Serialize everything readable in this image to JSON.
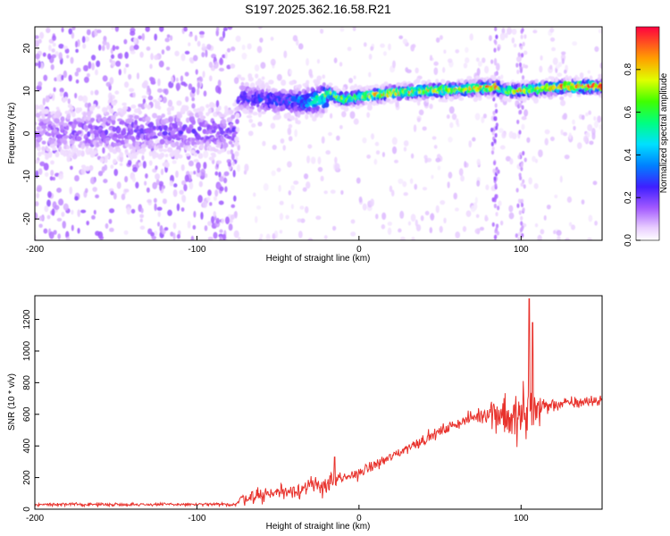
{
  "figure": {
    "title": "S197.2025.362.16.58.R21"
  },
  "chart_data": [
    {
      "type": "heatmap",
      "xlabel": "Height of straight line (km)",
      "ylabel": "Frequency (Hz)",
      "xlim": [
        -200,
        150
      ],
      "ylim": [
        -25,
        25
      ],
      "x_ticks": [
        -200,
        -100,
        0,
        100
      ],
      "y_ticks": [
        -20,
        -10,
        0,
        10,
        20
      ],
      "grid": false,
      "colorbar": {
        "label": "Normalized spectral amplitude",
        "range": [
          0,
          1
        ],
        "ticks": [
          0,
          0.2,
          0.4,
          0.6,
          0.8
        ],
        "tick_labels": [
          "0.0",
          "0.2",
          "0.4",
          "0.6",
          "0.8"
        ]
      },
      "ridge": {
        "x": [
          -200,
          -160,
          -120,
          -76,
          -74,
          -60,
          -45,
          -30,
          -22,
          -18,
          -10,
          0,
          20,
          40,
          60,
          80,
          84,
          90,
          100,
          110,
          130,
          150
        ],
        "freq_hz": [
          0.5,
          0.5,
          0.5,
          0.5,
          8.5,
          8,
          7.5,
          7.5,
          8.5,
          9.5,
          8,
          8.5,
          9.5,
          10,
          10.3,
          10.8,
          11,
          10,
          10,
          10.5,
          11,
          11
        ],
        "peak_amplitude": [
          0.15,
          0.2,
          0.2,
          0.2,
          0.25,
          0.3,
          0.3,
          0.45,
          0.6,
          0.75,
          0.75,
          0.8,
          0.85,
          0.85,
          0.85,
          0.9,
          0.95,
          0.7,
          0.8,
          0.85,
          0.95,
          0.95
        ]
      }
    },
    {
      "type": "line",
      "xlabel": "Height of straight line (km)",
      "ylabel": "SNR (10 * v/v)",
      "xlim": [
        -200,
        150
      ],
      "ylim": [
        0,
        1350
      ],
      "x_ticks": [
        -200,
        -100,
        0,
        100
      ],
      "y_ticks": [
        0,
        200,
        400,
        600,
        800,
        1000,
        1200
      ],
      "grid": false,
      "series": [
        {
          "color": "#e8322c",
          "x": [
            -200,
            -150,
            -100,
            -76,
            -72,
            -60,
            -50,
            -40,
            -30,
            -20,
            -10,
            0,
            10,
            20,
            30,
            40,
            50,
            60,
            70,
            80,
            85,
            90,
            95,
            100,
            105,
            110,
            120,
            130,
            140,
            150
          ],
          "y": [
            30,
            30,
            30,
            30,
            70,
            90,
            110,
            120,
            140,
            160,
            190,
            230,
            280,
            330,
            390,
            440,
            490,
            540,
            580,
            610,
            620,
            600,
            560,
            580,
            600,
            640,
            660,
            670,
            680,
            690
          ],
          "noise_amplitude": [
            10,
            10,
            10,
            10,
            40,
            50,
            50,
            50,
            60,
            70,
            40,
            35,
            35,
            35,
            35,
            35,
            35,
            35,
            40,
            60,
            150,
            180,
            160,
            200,
            250,
            120,
            40,
            40,
            40,
            40
          ]
        }
      ],
      "annotations": [
        {
          "x": -15,
          "y": 330
        },
        {
          "x": 105,
          "y": 1330
        },
        {
          "x": 107,
          "y": 1180
        }
      ]
    }
  ]
}
